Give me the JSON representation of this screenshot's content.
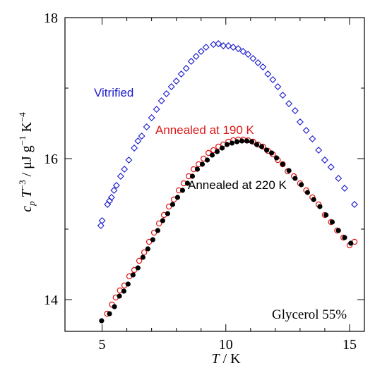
{
  "chart_data": {
    "type": "scatter",
    "xlabel_italic": "T",
    "xlabel_unit": " / K",
    "ylabel_parts": {
      "c": "c",
      "p": "p",
      "T": " T",
      "exp1": "−3",
      "mid": " / μJ g",
      "exp2": "−1",
      "K": " K",
      "exp3": "−4"
    },
    "xlim": [
      3.5,
      15.6
    ],
    "ylim": [
      13.55,
      18.0
    ],
    "x_ticks": [
      5,
      10,
      15
    ],
    "x_tick_labels": [
      "5",
      "10",
      "15"
    ],
    "y_ticks": [
      14,
      16,
      18
    ],
    "y_tick_labels": [
      "14",
      "16",
      "18"
    ],
    "x_minor_ticks": [
      6,
      7,
      8,
      9,
      11,
      12,
      13,
      14
    ],
    "y_minor_ticks": [
      15,
      17
    ],
    "annotation": "Glycerol 55%",
    "series": [
      {
        "name": "Vitrified",
        "color": "#1c1ccf",
        "marker": "diamond-open",
        "x": [
          4.95,
          5.0,
          5.22,
          5.3,
          5.38,
          5.48,
          5.58,
          5.75,
          5.9,
          6.08,
          6.3,
          6.45,
          6.6,
          6.8,
          7.0,
          7.2,
          7.4,
          7.6,
          7.8,
          8.0,
          8.2,
          8.4,
          8.6,
          8.8,
          9.0,
          9.2,
          9.5,
          9.7,
          9.9,
          10.1,
          10.3,
          10.5,
          10.7,
          10.9,
          11.1,
          11.3,
          11.5,
          11.7,
          11.9,
          12.1,
          12.3,
          12.55,
          12.8,
          13.0,
          13.25,
          13.5,
          13.75,
          14.0,
          14.25,
          14.55,
          14.8,
          15.2
        ],
        "y": [
          15.05,
          15.12,
          15.35,
          15.4,
          15.45,
          15.55,
          15.62,
          15.75,
          15.85,
          15.98,
          16.15,
          16.25,
          16.32,
          16.45,
          16.58,
          16.7,
          16.82,
          16.92,
          17.02,
          17.1,
          17.2,
          17.28,
          17.38,
          17.45,
          17.52,
          17.58,
          17.62,
          17.63,
          17.6,
          17.6,
          17.58,
          17.56,
          17.52,
          17.48,
          17.42,
          17.36,
          17.3,
          17.2,
          17.12,
          17.02,
          16.9,
          16.78,
          16.68,
          16.52,
          16.4,
          16.28,
          16.12,
          15.98,
          15.88,
          15.72,
          15.58,
          15.35
        ]
      },
      {
        "name": "Annealed at 190 K",
        "color": "#e01818",
        "marker": "circle-open",
        "x": [
          5.2,
          5.4,
          5.55,
          5.72,
          5.9,
          6.1,
          6.3,
          6.5,
          6.7,
          6.9,
          7.1,
          7.3,
          7.5,
          7.7,
          7.9,
          8.1,
          8.3,
          8.5,
          8.7,
          8.9,
          9.1,
          9.3,
          9.5,
          9.7,
          9.9,
          10.1,
          10.3,
          10.5,
          10.7,
          10.9,
          11.1,
          11.3,
          11.5,
          11.7,
          11.9,
          12.1,
          12.3,
          12.5,
          12.75,
          13.0,
          13.25,
          13.5,
          13.75,
          14.0,
          14.25,
          14.5,
          14.75,
          15.0,
          15.2
        ],
        "y": [
          13.8,
          13.93,
          14.03,
          14.13,
          14.2,
          14.33,
          14.42,
          14.55,
          14.67,
          14.82,
          14.95,
          15.08,
          15.2,
          15.32,
          15.42,
          15.55,
          15.65,
          15.75,
          15.85,
          15.92,
          16.0,
          16.08,
          16.12,
          16.17,
          16.2,
          16.24,
          16.26,
          16.27,
          16.27,
          16.26,
          16.24,
          16.2,
          16.17,
          16.11,
          16.06,
          15.98,
          15.92,
          15.82,
          15.75,
          15.65,
          15.55,
          15.45,
          15.35,
          15.2,
          15.1,
          14.98,
          14.88,
          14.77,
          14.82
        ]
      },
      {
        "name": "Annealed at 220 K",
        "color": "#000000",
        "marker": "circle-filled",
        "x": [
          4.98,
          5.3,
          5.5,
          5.7,
          5.88,
          6.05,
          6.25,
          6.45,
          6.65,
          6.85,
          7.05,
          7.25,
          7.45,
          7.65,
          7.85,
          8.05,
          8.25,
          8.45,
          8.65,
          8.85,
          9.05,
          9.25,
          9.45,
          9.65,
          9.85,
          10.05,
          10.25,
          10.45,
          10.65,
          10.85,
          11.05,
          11.25,
          11.45,
          11.65,
          11.85,
          12.05,
          12.3,
          12.55,
          12.8,
          13.05,
          13.3,
          13.55,
          13.8,
          14.05,
          14.3,
          14.55,
          14.8,
          15.05
        ],
        "y": [
          13.7,
          13.8,
          13.9,
          14.05,
          14.12,
          14.22,
          14.35,
          14.45,
          14.6,
          14.72,
          14.85,
          14.98,
          15.12,
          15.22,
          15.35,
          15.45,
          15.55,
          15.65,
          15.75,
          15.85,
          15.92,
          15.98,
          16.05,
          16.1,
          16.15,
          16.2,
          16.22,
          16.24,
          16.25,
          16.25,
          16.24,
          16.2,
          16.17,
          16.12,
          16.08,
          16.01,
          15.92,
          15.83,
          15.72,
          15.63,
          15.52,
          15.42,
          15.32,
          15.2,
          15.1,
          14.98,
          14.88,
          14.8
        ]
      }
    ],
    "labels": [
      {
        "text": "Vitrified",
        "series": 0
      },
      {
        "text": "Annealed at 190 K",
        "series": 1
      },
      {
        "text": "Annealed at 220 K",
        "series": 2
      }
    ]
  }
}
